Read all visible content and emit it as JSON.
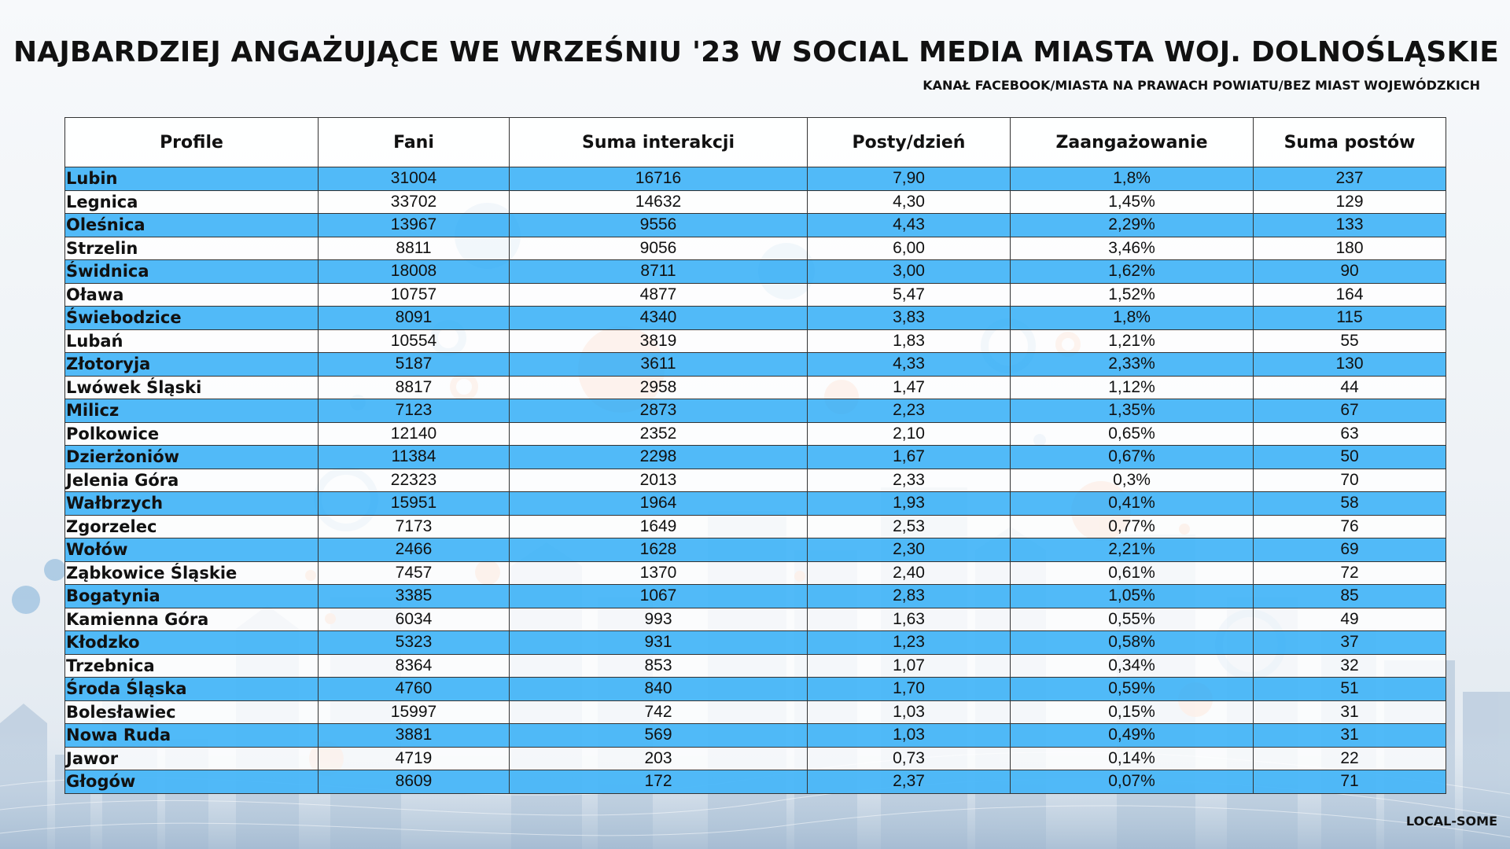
{
  "title": "NAJBARDZIEJ ANGAŻUJĄCE WE WRZEŚNIU '23 W SOCIAL MEDIA MIASTA WOJ. DOLNOŚLĄSKIE",
  "subtitle": "KANAŁ FACEBOOK/MIASTA NA PRAWACH POWIATU/BEZ MIAST WOJEWÓDZKICH",
  "footer": "LOCAL-SOME",
  "colors": {
    "row_blue": "#4ab7f8",
    "row_white": "#ffffff",
    "accent_orange": "#f0a57a"
  },
  "table": {
    "headers": [
      "Profile",
      "Fani",
      "Suma interakcji",
      "Posty/dzień",
      "Zaangażowanie",
      "Suma postów"
    ],
    "rows": [
      [
        "Lubin",
        "31004",
        "16716",
        "7,90",
        "1,8%",
        "237"
      ],
      [
        "Legnica",
        "33702",
        "14632",
        "4,30",
        "1,45%",
        "129"
      ],
      [
        "Oleśnica",
        "13967",
        "9556",
        "4,43",
        "2,29%",
        "133"
      ],
      [
        "Strzelin",
        "8811",
        "9056",
        "6,00",
        "3,46%",
        "180"
      ],
      [
        "Świdnica",
        "18008",
        "8711",
        "3,00",
        "1,62%",
        "90"
      ],
      [
        "Oława",
        "10757",
        "4877",
        "5,47",
        "1,52%",
        "164"
      ],
      [
        "Świebodzice",
        "8091",
        "4340",
        "3,83",
        "1,8%",
        "115"
      ],
      [
        "Lubań",
        "10554",
        "3819",
        "1,83",
        "1,21%",
        "55"
      ],
      [
        "Złotoryja",
        "5187",
        "3611",
        "4,33",
        "2,33%",
        "130"
      ],
      [
        "Lwówek Śląski",
        "8817",
        "2958",
        "1,47",
        "1,12%",
        "44"
      ],
      [
        "Milicz",
        "7123",
        "2873",
        "2,23",
        "1,35%",
        "67"
      ],
      [
        "Polkowice",
        "12140",
        "2352",
        "2,10",
        "0,65%",
        "63"
      ],
      [
        "Dzierżoniów",
        "11384",
        "2298",
        "1,67",
        "0,67%",
        "50"
      ],
      [
        "Jelenia Góra",
        "22323",
        "2013",
        "2,33",
        "0,3%",
        "70"
      ],
      [
        "Wałbrzych",
        "15951",
        "1964",
        "1,93",
        "0,41%",
        "58"
      ],
      [
        "Zgorzelec",
        "7173",
        "1649",
        "2,53",
        "0,77%",
        "76"
      ],
      [
        "Wołów",
        "2466",
        "1628",
        "2,30",
        "2,21%",
        "69"
      ],
      [
        "Ząbkowice Śląskie",
        "7457",
        "1370",
        "2,40",
        "0,61%",
        "72"
      ],
      [
        "Bogatynia",
        "3385",
        "1067",
        "2,83",
        "1,05%",
        "85"
      ],
      [
        "Kamienna Góra",
        "6034",
        "993",
        "1,63",
        "0,55%",
        "49"
      ],
      [
        "Kłodzko",
        "5323",
        "931",
        "1,23",
        "0,58%",
        "37"
      ],
      [
        "Trzebnica",
        "8364",
        "853",
        "1,07",
        "0,34%",
        "32"
      ],
      [
        "Środa Śląska",
        "4760",
        "840",
        "1,70",
        "0,59%",
        "51"
      ],
      [
        "Bolesławiec",
        "15997",
        "742",
        "1,03",
        "0,15%",
        "31"
      ],
      [
        "Nowa Ruda",
        "3881",
        "569",
        "1,03",
        "0,49%",
        "31"
      ],
      [
        "Jawor",
        "4719",
        "203",
        "0,73",
        "0,14%",
        "22"
      ],
      [
        "Głogów",
        "8609",
        "172",
        "2,37",
        "0,07%",
        "71"
      ]
    ]
  }
}
